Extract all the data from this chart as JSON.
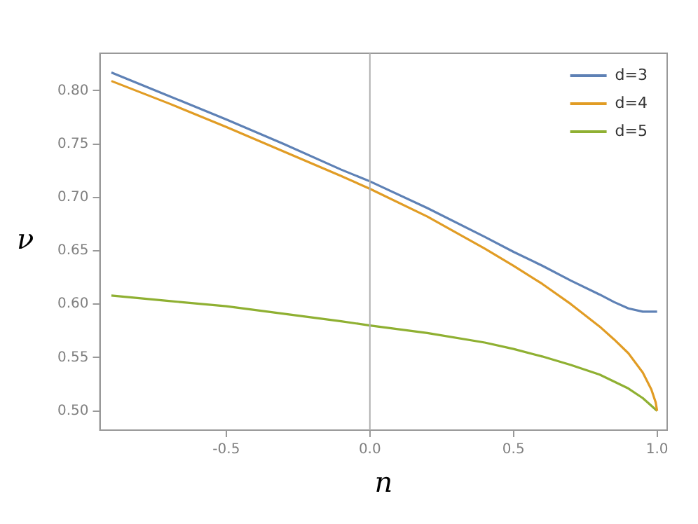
{
  "chart_data": {
    "type": "line",
    "xlabel": "n",
    "ylabel": "ν",
    "xlim": [
      -0.94,
      1.035
    ],
    "ylim": [
      0.482,
      0.835
    ],
    "xticks": [
      -0.5,
      {
        "value": 0,
        "label": "0.0"
      },
      0.5,
      {
        "value": 1,
        "label": "1.0"
      }
    ],
    "yticks": [
      {
        "value": 0.5,
        "label": "0.50"
      },
      0.55,
      {
        "value": 0.6,
        "label": "0.60"
      },
      0.65,
      {
        "value": 0.7,
        "label": "0.70"
      },
      0.75,
      {
        "value": 0.8,
        "label": "0.80"
      }
    ],
    "grid": false,
    "legend": "top right",
    "marker": "none",
    "line_style": "solid",
    "ref_lines": [
      {
        "axis": "x",
        "value": 0,
        "color": "#b0b0b0"
      }
    ],
    "series": [
      {
        "name": "d=3",
        "color": "#5e81b5",
        "x": [
          -0.9,
          -0.7,
          -0.5,
          -0.3,
          -0.1,
          0,
          0.2,
          0.4,
          0.5,
          0.6,
          0.7,
          0.8,
          0.85,
          0.9,
          0.95,
          1.0
        ],
        "values": [
          0.817,
          0.795,
          0.773,
          0.75,
          0.726,
          0.715,
          0.69,
          0.663,
          0.649,
          0.636,
          0.622,
          0.609,
          0.602,
          0.596,
          0.593,
          0.593
        ]
      },
      {
        "name": "d=4",
        "color": "#e19c24",
        "x": [
          -0.9,
          -0.7,
          -0.5,
          -0.3,
          -0.1,
          0,
          0.2,
          0.4,
          0.5,
          0.6,
          0.7,
          0.8,
          0.85,
          0.9,
          0.95,
          0.98,
          0.995,
          1.0
        ],
        "values": [
          0.809,
          0.788,
          0.766,
          0.743,
          0.72,
          0.708,
          0.682,
          0.652,
          0.636,
          0.619,
          0.6,
          0.579,
          0.567,
          0.554,
          0.536,
          0.52,
          0.508,
          0.5
        ]
      },
      {
        "name": "d=5",
        "color": "#8fb032",
        "x": [
          -0.9,
          -0.7,
          -0.5,
          -0.3,
          -0.1,
          0,
          0.2,
          0.4,
          0.5,
          0.6,
          0.7,
          0.8,
          0.9,
          0.95,
          1.0
        ],
        "values": [
          0.608,
          0.603,
          0.598,
          0.591,
          0.584,
          0.58,
          0.573,
          0.564,
          0.558,
          0.551,
          0.543,
          0.534,
          0.521,
          0.512,
          0.5
        ]
      }
    ]
  }
}
